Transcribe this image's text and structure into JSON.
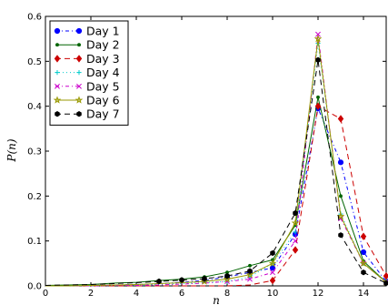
{
  "chart_data": {
    "type": "line",
    "xlabel": "n",
    "ylabel": "P(n)",
    "xlim": [
      0,
      15
    ],
    "ylim": [
      0,
      0.6
    ],
    "xticks": [
      0,
      2,
      4,
      6,
      8,
      10,
      12,
      14
    ],
    "yticks": [
      0.0,
      0.1,
      0.2,
      0.3,
      0.4,
      0.5,
      0.6
    ],
    "xtick_labels": [
      "0",
      "2",
      "4",
      "6",
      "8",
      "10",
      "12",
      "14"
    ],
    "ytick_labels": [
      "0.0",
      "0.1",
      "0.2",
      "0.3",
      "0.4",
      "0.5",
      "0.6"
    ],
    "grid": false,
    "legend_position": "top-left",
    "x": [
      0,
      1,
      2,
      3,
      4,
      5,
      6,
      7,
      8,
      9,
      10,
      11,
      12,
      13,
      14,
      15
    ],
    "series": [
      {
        "name": "Day 1",
        "color": "#0000ff",
        "dash": "4,3,1,3",
        "marker": "circle",
        "values": [
          0.0,
          0.0,
          0.001,
          0.002,
          0.003,
          0.005,
          0.008,
          0.012,
          0.02,
          0.03,
          0.04,
          0.115,
          0.395,
          0.275,
          0.075,
          0.01
        ]
      },
      {
        "name": "Day 2",
        "color": "#006400",
        "dash": "",
        "marker": "point",
        "values": [
          0.001,
          0.002,
          0.003,
          0.006,
          0.008,
          0.012,
          0.015,
          0.02,
          0.03,
          0.045,
          0.058,
          0.135,
          0.42,
          0.2,
          0.055,
          0.008
        ]
      },
      {
        "name": "Day 3",
        "color": "#cc0000",
        "dash": "6,4",
        "marker": "diamond",
        "values": [
          0.0,
          0.0,
          0.0,
          0.0,
          0.0,
          0.0,
          0.0,
          0.0,
          0.0,
          0.002,
          0.012,
          0.08,
          0.4,
          0.372,
          0.11,
          0.022
        ]
      },
      {
        "name": "Day 4",
        "color": "#00cccc",
        "dash": "1,3",
        "marker": "plus",
        "values": [
          0.0,
          0.0,
          0.0,
          0.001,
          0.002,
          0.003,
          0.005,
          0.007,
          0.01,
          0.02,
          0.05,
          0.12,
          0.54,
          0.16,
          0.05,
          0.01
        ]
      },
      {
        "name": "Day 5",
        "color": "#cc00cc",
        "dash": "4,3,1,3",
        "marker": "x",
        "values": [
          0.0,
          0.0,
          0.0,
          0.001,
          0.001,
          0.002,
          0.004,
          0.006,
          0.01,
          0.015,
          0.03,
          0.1,
          0.56,
          0.15,
          0.05,
          0.008
        ]
      },
      {
        "name": "Day 6",
        "color": "#999900",
        "dash": "",
        "marker": "star",
        "values": [
          0.0,
          0.0,
          0.001,
          0.002,
          0.003,
          0.005,
          0.007,
          0.01,
          0.015,
          0.025,
          0.05,
          0.14,
          0.55,
          0.155,
          0.05,
          0.008
        ]
      },
      {
        "name": "Day 7",
        "color": "#000000",
        "dash": "6,4",
        "marker": "hexagon",
        "values": [
          0.001,
          0.002,
          0.003,
          0.005,
          0.007,
          0.01,
          0.013,
          0.016,
          0.022,
          0.033,
          0.073,
          0.162,
          0.503,
          0.113,
          0.03,
          0.006
        ]
      }
    ]
  }
}
